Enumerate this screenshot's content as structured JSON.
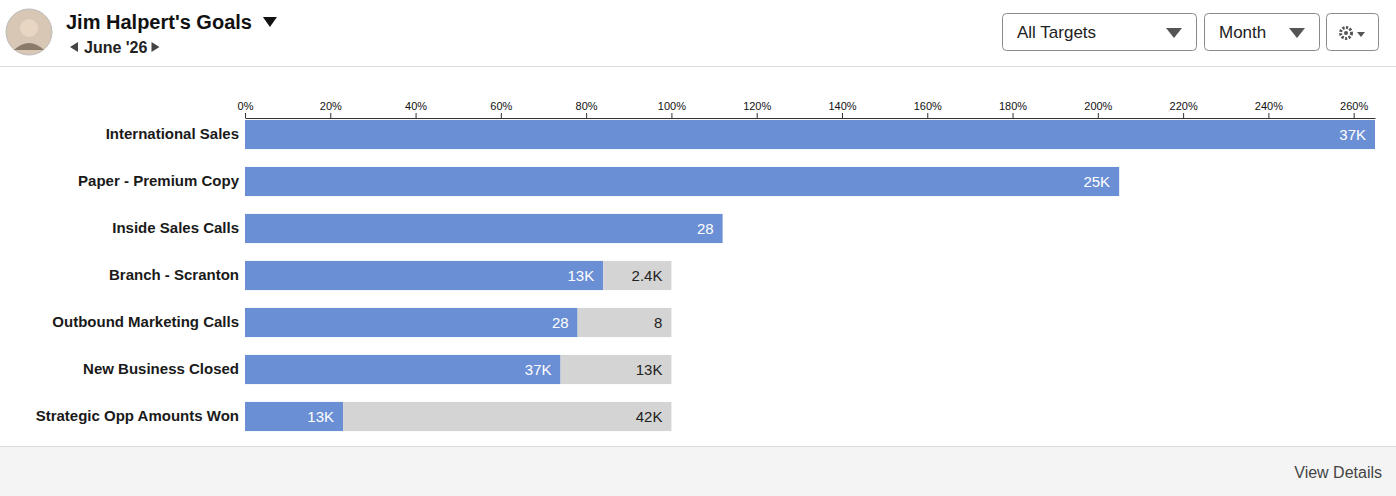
{
  "header": {
    "title": "Jim Halpert's Goals",
    "period": "June '26"
  },
  "controls": [
    "All Targets",
    "Month"
  ],
  "chart_data": {
    "type": "bar",
    "orientation": "horizontal",
    "stacked": true,
    "grid": false,
    "categories": [
      "International Sales",
      "Paper - Premium Copy",
      "Inside Sales Calls",
      "Branch - Scranton",
      "Outbound Marketing Calls",
      "New Business Closed",
      "Strategic Opp Amounts Won"
    ],
    "xlim": [
      0,
      265
    ],
    "xticks": [
      {
        "value": 0,
        "label": "0%"
      },
      {
        "value": 20,
        "label": "20%"
      },
      {
        "value": 40,
        "label": "40%"
      },
      {
        "value": 60,
        "label": "60%"
      },
      {
        "value": 80,
        "label": "80%"
      },
      {
        "value": 100,
        "label": "100%"
      },
      {
        "value": 120,
        "label": "120%"
      },
      {
        "value": 140,
        "label": "140%"
      },
      {
        "value": 160,
        "label": "160%"
      },
      {
        "value": 180,
        "label": "180%"
      },
      {
        "value": 200,
        "label": "200%"
      },
      {
        "value": 220,
        "label": "220%"
      },
      {
        "value": 240,
        "label": "240%"
      },
      {
        "value": 260,
        "label": "260%"
      }
    ],
    "series": [
      {
        "color": "#6b8fd4",
        "values": [
          265,
          205,
          112,
          84,
          78,
          74,
          23
        ],
        "labels": [
          "37K",
          "25K",
          "28",
          "13K",
          "28",
          "37K",
          "13K"
        ]
      },
      {
        "color": "#d4d4d4",
        "values": [
          null,
          null,
          null,
          16,
          22,
          26,
          77
        ],
        "labels": [
          null,
          null,
          null,
          "2.4K",
          "8",
          "13K",
          "42K"
        ]
      }
    ]
  },
  "footer": {
    "link": "View Details"
  }
}
